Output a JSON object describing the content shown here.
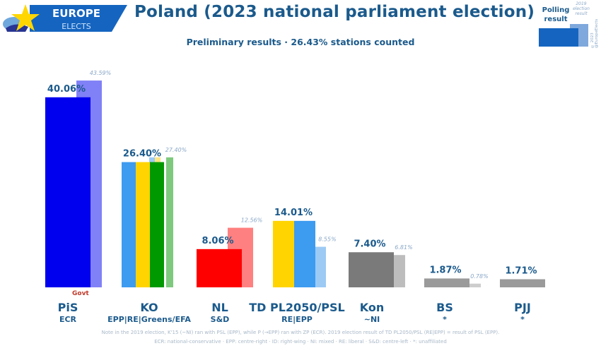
{
  "header": {
    "logo_line1": "EUROPE",
    "logo_line2": "ELECTS",
    "title": "Poland (2023 national parliament election)",
    "subtitle": "Preliminary results · 26.43% stations counted"
  },
  "legend": {
    "polling_label_line1": "Polling",
    "polling_label_line2": "result",
    "previous_label_line1": "2019",
    "previous_label_line2": "election",
    "previous_label_line3": "result",
    "copyright": "© 2023 @EuropeElects"
  },
  "colors": {
    "text": "#1b5a8c",
    "prev_label": "#8aa8c8",
    "govt": "#c0392b"
  },
  "chart_data": {
    "type": "bar",
    "title": "Poland (2023 national parliament election)",
    "subtitle": "Preliminary results · 26.43% stations counted",
    "xlabel": "",
    "ylabel": "",
    "ylim": [
      0,
      45
    ],
    "grid": false,
    "legend_placement": "top-right",
    "categories": [
      "PiS",
      "KO",
      "NL",
      "TD PL2050/PSL",
      "Kon",
      "BS",
      "PJJ"
    ],
    "groups": [
      "ECR",
      "EPP|RE|Greens/EFA",
      "S&D",
      "RE|EPP",
      "~NI",
      "*",
      "*"
    ],
    "series": [
      {
        "name": "Polling result",
        "values": [
          40.06,
          26.4,
          8.06,
          14.01,
          7.4,
          1.87,
          1.71
        ],
        "labels": [
          "40.06%",
          "26.40%",
          "8.06%",
          "14.01%",
          "7.40%",
          "1.87%",
          "1.71%"
        ]
      },
      {
        "name": "2019 election result",
        "values": [
          43.59,
          27.4,
          12.56,
          8.55,
          6.81,
          0.78,
          null
        ],
        "labels": [
          "43.59%",
          "27.40%",
          "12.56%",
          "8.55%",
          "6.81%",
          "0.78%",
          ""
        ]
      }
    ],
    "bar_colors": [
      {
        "main": [
          "#0000ee"
        ],
        "prev": [
          "#8080f7"
        ]
      },
      {
        "main": [
          "#3d9bf0",
          "#ffd400",
          "#009a00"
        ],
        "prev": [
          "#9ccaf5",
          "#ffe680",
          "#7fc97f"
        ]
      },
      {
        "main": [
          "#ff0000"
        ],
        "prev": [
          "#ff8080"
        ]
      },
      {
        "main": [
          "#ffd400",
          "#3d9bf0"
        ],
        "prev": [
          "#9ccaf5"
        ]
      },
      {
        "main": [
          "#7a7a7a"
        ],
        "prev": [
          "#bdbdbd"
        ]
      },
      {
        "main": [
          "#9a9a9a"
        ],
        "prev": [
          "#cdcdcd"
        ]
      },
      {
        "main": [
          "#9a9a9a"
        ],
        "prev": []
      }
    ],
    "annotations": [
      {
        "category": "PiS",
        "text": "Govt"
      }
    ]
  },
  "footnotes": {
    "line1": "Note in the 2019 election, K'15 (~NI) ran with PSL (EPP), while P (→EPP) ran with ZP (ECR). 2019 election result of TD PL2050/PSL (RE|EPP) = result of PSL (EPP).",
    "line2": "ECR: national-conservative · EPP: centre-right · ID: right-wing · NI: mixed · RE: liberal · S&D: centre-left · *: unaffiliated"
  }
}
